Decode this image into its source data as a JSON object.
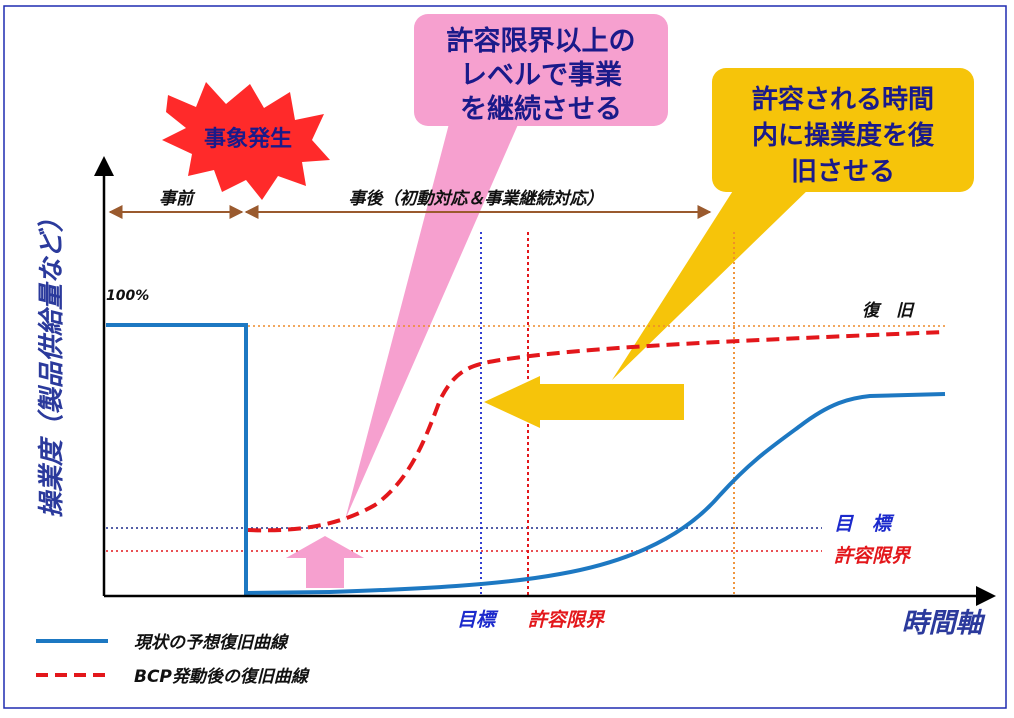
{
  "event": {
    "label": "事象発生"
  },
  "phases": {
    "before": "事前",
    "after": "事後（初動対応＆事業継続対応）"
  },
  "yaxis": {
    "label": "操業度（製品供給量など）",
    "hundred": "100%"
  },
  "xaxis": {
    "label": "時間軸"
  },
  "levels": {
    "recovery": "復　旧",
    "target": "目　標",
    "tolerance": "許容限界"
  },
  "time_markers": {
    "target": "目標",
    "tolerance": "許容限界"
  },
  "callouts": {
    "pink": [
      "許容限界以上の",
      "レベルで事業",
      "を継続させる"
    ],
    "yellow": [
      "許容される時間",
      "内に操業度を復",
      "旧させる"
    ]
  },
  "legend": {
    "current": "現状の予想復旧曲線",
    "bcp": "BCP発動後の復旧曲線"
  },
  "colors": {
    "frame": "#1f2bb0",
    "axis_label": "#2b3a9c",
    "current_curve": "#1d78c2",
    "bcp_curve": "#e3171b",
    "orange_dotted": "#ee8a2a",
    "navy_dotted": "#1c2a8a",
    "pink": "#f6a0cf",
    "yellow": "#f6c40a",
    "brown_arrow": "#9a5a2e",
    "star_red": "#ff2a2a"
  },
  "icons": [
    "explosion-star-icon",
    "up-arrow-icon",
    "left-arrow-icon"
  ]
}
